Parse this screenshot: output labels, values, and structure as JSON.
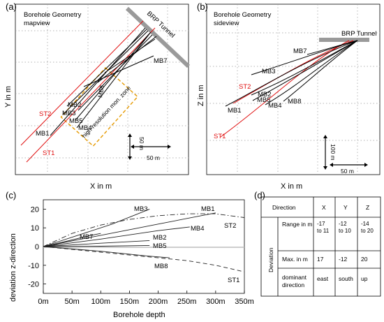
{
  "panels": {
    "a": {
      "label": "(a)",
      "title": "Borehole Geometry",
      "subtitle": "mapview",
      "xlabel": "X in m",
      "ylabel": "Y in m",
      "tunnel_label": "BRP Tunnel",
      "zone_label": "high-resolution mon. zone",
      "scale_v": "50 m",
      "scale_h": "50 m",
      "st1": "ST1",
      "st2": "ST2",
      "mb1": "MB1",
      "mb2": "MB2",
      "mb3": "MB3",
      "mb4": "MB4",
      "mb5": "MB5",
      "mb7": "MB7",
      "mb8": "MB8"
    },
    "b": {
      "label": "(b)",
      "title": "Borehole Geometry",
      "subtitle": "sideview",
      "xlabel": "X in m",
      "ylabel": "Z in m",
      "tunnel_label": "BRP Tunnel",
      "scale_v": "100 m",
      "scale_h": "50 m",
      "st1": "ST1",
      "st2": "ST2",
      "mb1": "MB1",
      "mb2": "MB2",
      "mb3": "MB3",
      "mb4": "MB4",
      "mb5": "MB5",
      "mb7": "MB7",
      "mb8": "MB8"
    },
    "c": {
      "label": "(c)",
      "xlabel": "Borehole depth",
      "ylabel": "deviation z-direction",
      "mb1": "MB1",
      "mb2": "MB2",
      "mb3": "MB3",
      "mb4": "MB4",
      "mb5": "MB5",
      "mb7": "MB7",
      "mb8": "MB8",
      "st1": "ST1",
      "st2": "ST2"
    },
    "d": {
      "label": "(d)",
      "h_direction": "Direction",
      "h_x": "X",
      "h_y": "Y",
      "h_z": "Z",
      "side_label": "Deviation",
      "r1_label": "Range in m",
      "r1_x": "-17 to 11",
      "r1_y": "-12 to 10",
      "r1_z": "-14 to 20",
      "r2_label": "Max. in m",
      "r2_x": "17",
      "r2_y": "-12",
      "r2_z": "20",
      "r3_label": "dominant direction",
      "r3_x": "east",
      "r3_y": "south",
      "r3_z": "up"
    }
  },
  "chart_data": {
    "type": "line",
    "xlabel": "Borehole depth",
    "ylabel": "deviation z-direction",
    "xlim": [
      0,
      350
    ],
    "ylim": [
      -25,
      25
    ],
    "x_ticks": [
      "0m",
      "50m",
      "100m",
      "150m",
      "200m",
      "250m",
      "300m",
      "350m"
    ],
    "y_ticks": [
      "20",
      "10",
      "0",
      "-10",
      "-20"
    ],
    "series": [
      {
        "name": "MB1",
        "style": "solid",
        "x": [
          0,
          100,
          200,
          300
        ],
        "y": [
          0,
          6,
          12,
          18
        ]
      },
      {
        "name": "MB3",
        "style": "solid",
        "x": [
          0,
          60,
          120,
          185
        ],
        "y": [
          0,
          6,
          12,
          20
        ]
      },
      {
        "name": "MB4",
        "style": "solid",
        "x": [
          0,
          100,
          200,
          255
        ],
        "y": [
          0,
          4,
          8.5,
          10.5
        ]
      },
      {
        "name": "MB7",
        "style": "solid",
        "x": [
          0,
          40,
          80,
          100
        ],
        "y": [
          0,
          2.8,
          5.8,
          7
        ]
      },
      {
        "name": "MB2",
        "style": "solid",
        "x": [
          0,
          100,
          185
        ],
        "y": [
          0,
          1.8,
          3.2
        ]
      },
      {
        "name": "MB5",
        "style": "solid",
        "x": [
          0,
          100,
          185
        ],
        "y": [
          0,
          0.2,
          0.6
        ]
      },
      {
        "name": "MB8",
        "style": "solid",
        "x": [
          0,
          100,
          180,
          220
        ],
        "y": [
          0,
          -2.5,
          -5,
          -6
        ]
      },
      {
        "name": "ST2",
        "style": "dashdot",
        "x": [
          0,
          50,
          100,
          150,
          200,
          250,
          300,
          350
        ],
        "y": [
          0,
          7,
          11.5,
          14.5,
          16.5,
          17.5,
          17.5,
          15.5
        ]
      },
      {
        "name": "ST1",
        "style": "dashed",
        "x": [
          0,
          50,
          100,
          150,
          200,
          250,
          300,
          350
        ],
        "y": [
          0,
          -1.5,
          -3,
          -4.5,
          -6,
          -7.5,
          -10,
          -13.5
        ]
      }
    ],
    "grid": false,
    "legend": "none"
  }
}
